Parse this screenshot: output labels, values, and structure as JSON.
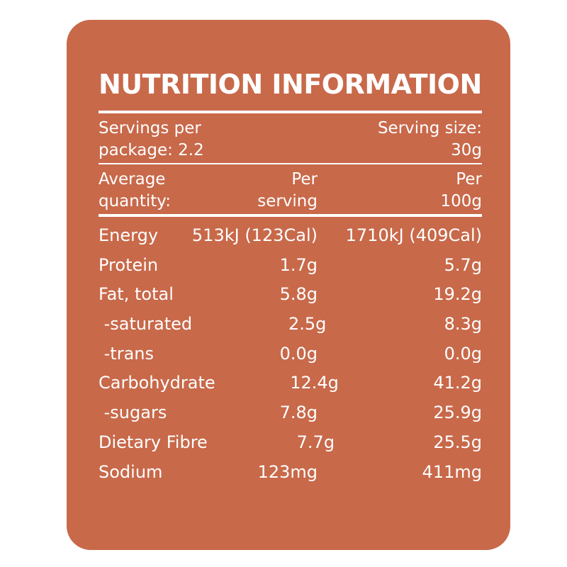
{
  "colors": {
    "panel_background": "#c8694a",
    "text": "#ffffff",
    "page_background": "#ffffff"
  },
  "title": "NUTRITION INFORMATION",
  "servings": {
    "left_line1": "Servings per",
    "left_line2": "package: 2.2",
    "right_line1": "Serving size:",
    "right_line2": "30g"
  },
  "header": {
    "col1_line1": "Average",
    "col1_line2": "quantity:",
    "col2_line1": "Per",
    "col2_line2": "serving",
    "col3_line1": "Per",
    "col3_line2": "100g"
  },
  "nutrients": [
    {
      "name": "Energy",
      "per_serving": "513kJ (123Cal)",
      "per_100g": "1710kJ (409Cal)"
    },
    {
      "name": "Protein",
      "per_serving": "1.7g",
      "per_100g": "5.7g"
    },
    {
      "name": "Fat, total",
      "per_serving": "5.8g",
      "per_100g": "19.2g"
    },
    {
      "name": " -saturated",
      "per_serving": "2.5g",
      "per_100g": "8.3g"
    },
    {
      "name": " -trans",
      "per_serving": "0.0g",
      "per_100g": "0.0g"
    },
    {
      "name": "Carbohydrate",
      "per_serving": "12.4g",
      "per_100g": "41.2g"
    },
    {
      "name": " -sugars",
      "per_serving": "7.8g",
      "per_100g": "25.9g"
    },
    {
      "name": "Dietary Fibre",
      "per_serving": "7.7g",
      "per_100g": "25.5g"
    },
    {
      "name": "Sodium",
      "per_serving": "123mg",
      "per_100g": "411mg"
    }
  ]
}
